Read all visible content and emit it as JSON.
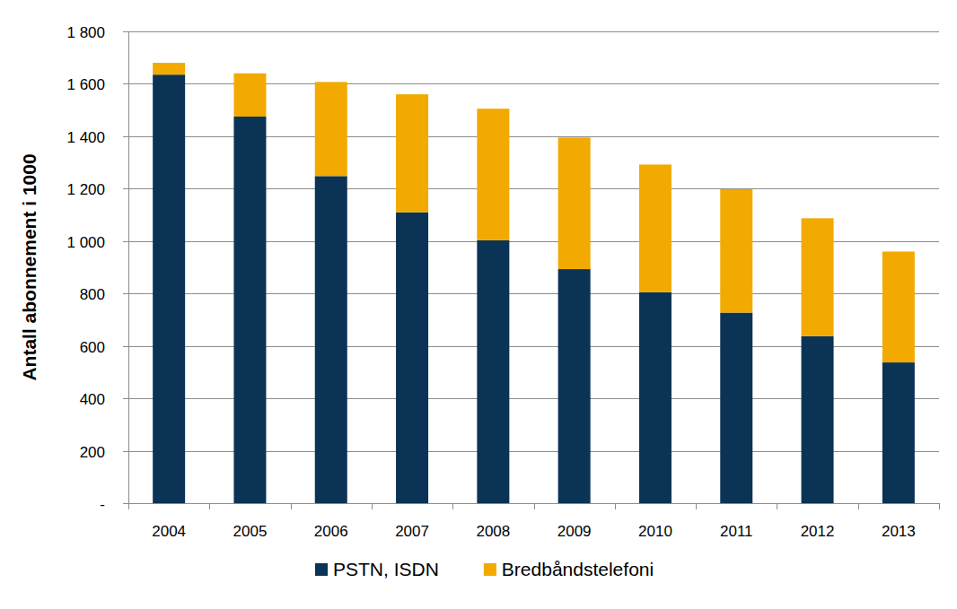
{
  "chart_data": {
    "type": "bar",
    "stacked": true,
    "grid": true,
    "legend": "bottom",
    "y_label": "Antall abonnement i 1000",
    "categories": [
      "2004",
      "2005",
      "2006",
      "2007",
      "2008",
      "2009",
      "2010",
      "2011",
      "2012",
      "2013"
    ],
    "series": [
      {
        "name": "PSTN, ISDN",
        "color": "#0b3356",
        "values": [
          1635,
          1475,
          1248,
          1110,
          1003,
          893,
          805,
          727,
          637,
          537
        ]
      },
      {
        "name": "Bredbåndstelefoni",
        "color": "#f2aa00",
        "values": [
          45,
          165,
          359,
          450,
          502,
          502,
          487,
          471,
          450,
          423
        ]
      }
    ],
    "ylim": [
      0,
      1800
    ],
    "yticks": [
      {
        "value": 0,
        "label": "-"
      },
      200,
      400,
      600,
      800,
      {
        "value": 1000,
        "label": "1 000"
      },
      {
        "value": 1200,
        "label": "1 200"
      },
      {
        "value": 1400,
        "label": "1 400"
      },
      {
        "value": 1600,
        "label": "1 600"
      },
      {
        "value": 1800,
        "label": "1 800"
      }
    ]
  }
}
